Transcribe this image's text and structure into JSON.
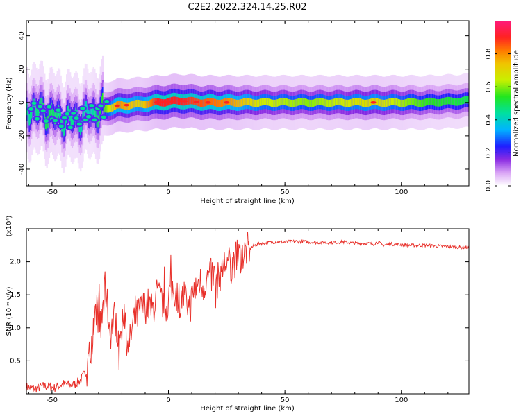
{
  "figure": {
    "title": "C2E2.2022.324.14.25.R02"
  },
  "chart_data": [
    {
      "type": "heatmap",
      "title": "",
      "xlabel": "Height of straight line (km)",
      "ylabel": "Frequency (Hz)",
      "xlim": [
        -61,
        129
      ],
      "ylim": [
        -50,
        49
      ],
      "xticks": [
        -50,
        0,
        50,
        100
      ],
      "yticks": [
        -40,
        -20,
        0,
        20,
        40
      ],
      "colorbar": {
        "label": "Normalized spectral amplitude",
        "range": [
          0,
          1
        ],
        "ticks": [
          "0.0",
          "0.2",
          "0.4",
          "0.6",
          "0.8"
        ]
      },
      "ridge": {
        "description_points": [
          {
            "x": -58,
            "y": -4,
            "amp": 0.45
          },
          {
            "x": -52,
            "y": -7,
            "amp": 0.5
          },
          {
            "x": -46,
            "y": -10,
            "amp": 0.45
          },
          {
            "x": -40,
            "y": -10,
            "amp": 0.45
          },
          {
            "x": -34,
            "y": -7,
            "amp": 0.4
          },
          {
            "x": -28,
            "y": -4,
            "amp": 0.55
          },
          {
            "x": -22,
            "y": -2,
            "amp": 0.8
          },
          {
            "x": -12,
            "y": -1,
            "amp": 0.7
          },
          {
            "x": -5,
            "y": 0,
            "amp": 0.9
          },
          {
            "x": 5,
            "y": 1,
            "amp": 0.9
          },
          {
            "x": 15,
            "y": 0,
            "amp": 0.85
          },
          {
            "x": 25,
            "y": 0,
            "amp": 0.8
          },
          {
            "x": 40,
            "y": 0,
            "amp": 0.65
          },
          {
            "x": 60,
            "y": 0,
            "amp": 0.6
          },
          {
            "x": 88,
            "y": 0,
            "amp": 0.7
          },
          {
            "x": 110,
            "y": 0,
            "amp": 0.55
          },
          {
            "x": 128,
            "y": 1,
            "amp": 0.5
          }
        ]
      }
    },
    {
      "type": "line",
      "title": "",
      "xlabel": "Height of straight line (km)",
      "ylabel": "SNR (10 * v/v)",
      "exponent_label": "(x10⁴)",
      "xlim": [
        -61,
        129
      ],
      "ylim": [
        0,
        2.5
      ],
      "xticks": [
        -50,
        0,
        50,
        100
      ],
      "yticks": [
        "0.5",
        "1.0",
        "1.5",
        "2.0"
      ],
      "series": [
        {
          "color": "#e8302a",
          "x": [
            -61,
            -57,
            -53,
            -49,
            -45,
            -41,
            -38,
            -35,
            -33,
            -31,
            -29,
            -27,
            -25,
            -23,
            -21,
            -19,
            -17,
            -15,
            -13,
            -11,
            -9,
            -7,
            -5,
            -3,
            -1,
            1,
            3,
            5,
            7,
            9,
            11,
            13,
            15,
            17,
            19,
            21,
            23,
            25,
            27,
            29,
            31,
            33,
            35,
            37,
            40,
            45,
            50,
            55,
            60,
            65,
            70,
            75,
            80,
            85,
            88,
            90,
            92,
            95,
            100,
            105,
            110,
            115,
            120,
            125,
            129
          ],
          "y": [
            0.1,
            0.08,
            0.12,
            0.09,
            0.15,
            0.13,
            0.2,
            0.35,
            0.8,
            1.3,
            1.0,
            1.6,
            0.9,
            1.2,
            0.8,
            1.3,
            0.7,
            1.1,
            1.2,
            1.3,
            1.35,
            1.25,
            1.5,
            1.4,
            1.3,
            1.6,
            1.55,
            1.4,
            1.5,
            1.3,
            1.55,
            1.7,
            1.65,
            1.75,
            1.8,
            1.7,
            1.9,
            2.0,
            1.95,
            2.05,
            2.1,
            2.15,
            2.2,
            2.25,
            2.28,
            2.3,
            2.3,
            2.31,
            2.3,
            2.29,
            2.29,
            2.3,
            2.28,
            2.28,
            2.27,
            2.3,
            2.25,
            2.27,
            2.26,
            2.25,
            2.25,
            2.24,
            2.23,
            2.22,
            2.22
          ]
        }
      ]
    }
  ]
}
